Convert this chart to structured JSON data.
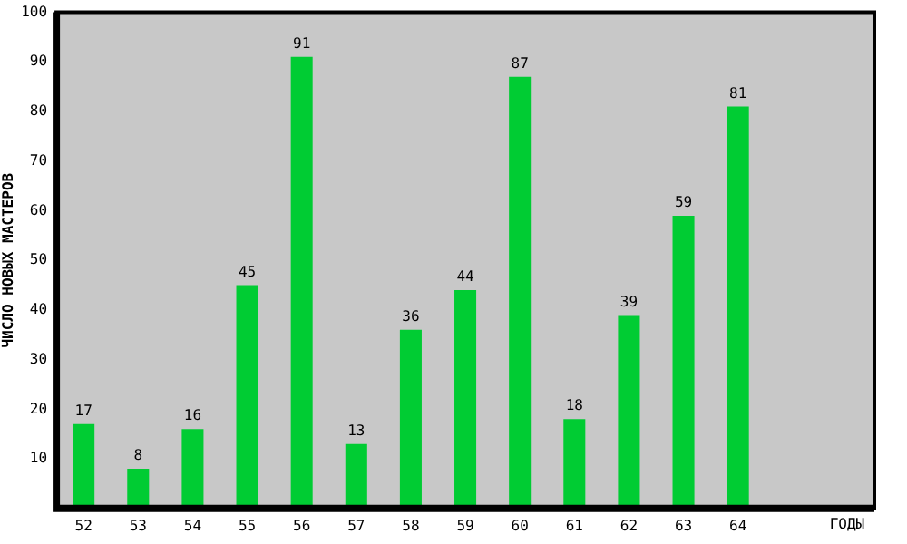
{
  "chart_data": {
    "type": "bar",
    "categories": [
      "52",
      "53",
      "54",
      "55",
      "56",
      "57",
      "58",
      "59",
      "60",
      "61",
      "62",
      "63",
      "64",
      null,
      null
    ],
    "values": [
      17,
      8,
      16,
      45,
      91,
      13,
      36,
      44,
      87,
      18,
      39,
      59,
      81,
      null,
      null
    ],
    "color": "#00cc33",
    "xlabel": "ГОДЫ",
    "ylabel": "ЧИСЛО НОВЫХ МАСТЕРОВ",
    "ylim": [
      0,
      100
    ],
    "yticks": [
      10,
      20,
      30,
      40,
      50,
      60,
      70,
      80,
      90,
      100
    ],
    "grid": false,
    "legend": false,
    "data_labels": true
  }
}
